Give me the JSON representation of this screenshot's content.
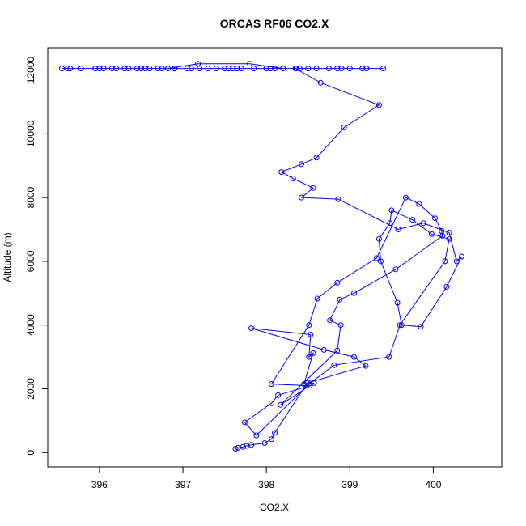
{
  "chart_data": {
    "type": "scatter",
    "title": "ORCAS RF06 CO2.X",
    "xlabel": "CO2.X",
    "ylabel": "Altitude (m)",
    "xlim": [
      395.38,
      400.82
    ],
    "ylim": [
      -450,
      12700
    ],
    "xticks": [
      396,
      397,
      398,
      399,
      400
    ],
    "yticks": [
      0,
      2000,
      4000,
      6000,
      8000,
      10000,
      12000
    ],
    "grid": false,
    "legend": "none",
    "colors": {
      "series": "#0000ff",
      "frame": "#000000"
    },
    "marker": "open-circle",
    "series": [
      {
        "x": [
          397.63,
          397.66,
          397.72,
          397.76,
          397.82,
          397.98,
          398.06,
          398.1,
          398.49,
          399.19,
          399.05,
          398.69,
          397.82,
          398.53,
          398.51,
          398.56,
          398.45,
          398.57,
          398.17,
          398.85,
          398.89,
          398.76,
          398.88,
          399.05,
          399.55,
          400.11,
          400.1,
          400.02,
          399.83,
          399.67,
          399.32,
          398.85,
          398.61,
          398.51,
          398.06,
          398.52,
          398.14,
          398.06,
          397.74,
          397.88,
          398.52,
          398.81,
          399.47,
          399.6,
          400.14,
          400.19,
          399.98,
          399.75,
          399.5,
          399.48,
          399.35,
          399.37,
          399.57,
          399.62,
          399.85,
          400.16,
          400.34,
          400.28,
          400.19,
          399.88,
          399.58,
          398.86,
          398.42,
          398.56,
          398.32,
          398.18,
          398.42,
          398.6,
          398.93,
          399.35,
          398.65,
          398.35,
          398.2,
          397.8,
          397.18,
          396.82,
          396.55,
          396.2,
          395.78,
          395.55,
          395.65,
          396.15,
          396.5,
          396.9,
          397.4,
          397.7,
          398.05,
          398.4,
          398.9,
          399.2,
          398.85,
          398.5,
          398.1,
          397.6,
          397.2,
          396.75,
          396.45,
          396.05,
          395.62,
          395.95,
          396.3,
          396.6,
          397.05,
          397.5,
          397.85,
          398.2,
          398.6,
          399.0,
          399.4,
          399.15,
          398.75,
          398.35,
          398.0,
          397.55,
          397.1,
          396.7,
          396.35,
          396.0,
          396.5,
          396.9,
          397.3,
          397.65,
          398.0,
          398.36
        ],
        "y": [
          120,
          150,
          180,
          210,
          240,
          300,
          420,
          620,
          2180,
          2720,
          3000,
          3220,
          3900,
          3700,
          3000,
          3120,
          2150,
          2180,
          1500,
          3200,
          4000,
          4150,
          4800,
          5000,
          5750,
          6800,
          6950,
          7350,
          7800,
          8000,
          6100,
          5330,
          4830,
          4000,
          2150,
          2100,
          1800,
          1550,
          950,
          540,
          2170,
          2740,
          3000,
          4000,
          6000,
          6700,
          6850,
          7300,
          7600,
          7200,
          6700,
          6000,
          4700,
          4000,
          3950,
          5200,
          6150,
          6000,
          6900,
          7200,
          7000,
          7950,
          8000,
          8300,
          8600,
          8800,
          9050,
          9250,
          10200,
          10900,
          11600,
          12050,
          12050,
          12200,
          12200,
          12050,
          12050,
          12050,
          12050,
          12050,
          12050,
          12050,
          12050,
          12050,
          12050,
          12050,
          12050,
          12050,
          12050,
          12050,
          12050,
          12050,
          12050,
          12050,
          12050,
          12050,
          12050,
          12050,
          12050,
          12050,
          12050,
          12050,
          12050,
          12050,
          12050,
          12050,
          12050,
          12050,
          12050,
          12050,
          12050,
          12050,
          12050,
          12050,
          12050,
          12050,
          12050,
          12050,
          12050,
          12050,
          12050,
          12050,
          12050,
          12050
        ]
      }
    ]
  }
}
